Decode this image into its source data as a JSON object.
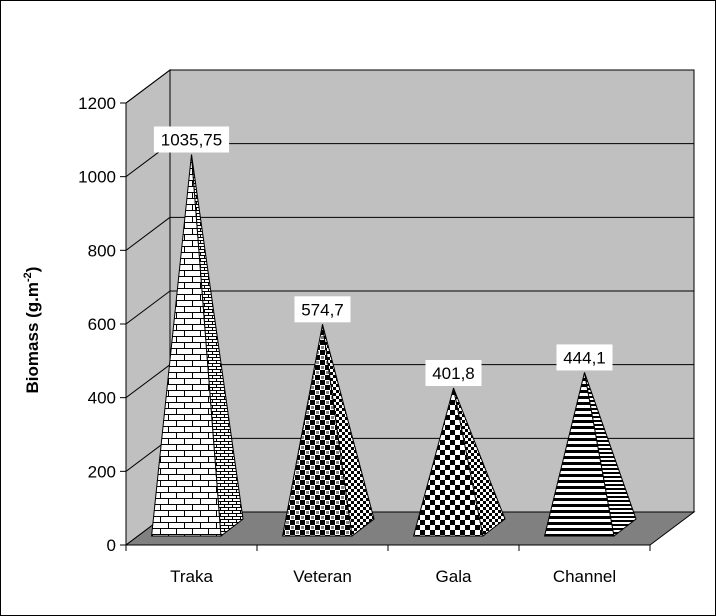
{
  "chart_data": {
    "type": "bar",
    "style": "3d-pyramid",
    "categories": [
      "Traka",
      "Veteran",
      "Gala",
      "Channel"
    ],
    "values": [
      1035.75,
      574.7,
      401.8,
      444.1
    ],
    "data_labels": [
      "1035,75",
      "574,7",
      "401,8",
      "444,1"
    ],
    "ylabel": "Biomass (g.m",
    "ylabel_superscript": "-2",
    "ylabel_suffix": ")",
    "ylim": [
      0,
      1200
    ],
    "yticks": [
      0,
      200,
      400,
      600,
      800,
      1000,
      1200
    ],
    "grid": true,
    "legend": false,
    "colors": {
      "wall": "#c0c0c0",
      "floor": "#808080",
      "pyramid_fill": "#ffffff",
      "pattern": "#000000",
      "gridline": "#000000"
    },
    "patterns": [
      "brick",
      "checker-fine",
      "checker",
      "horizontal-stripes"
    ]
  }
}
